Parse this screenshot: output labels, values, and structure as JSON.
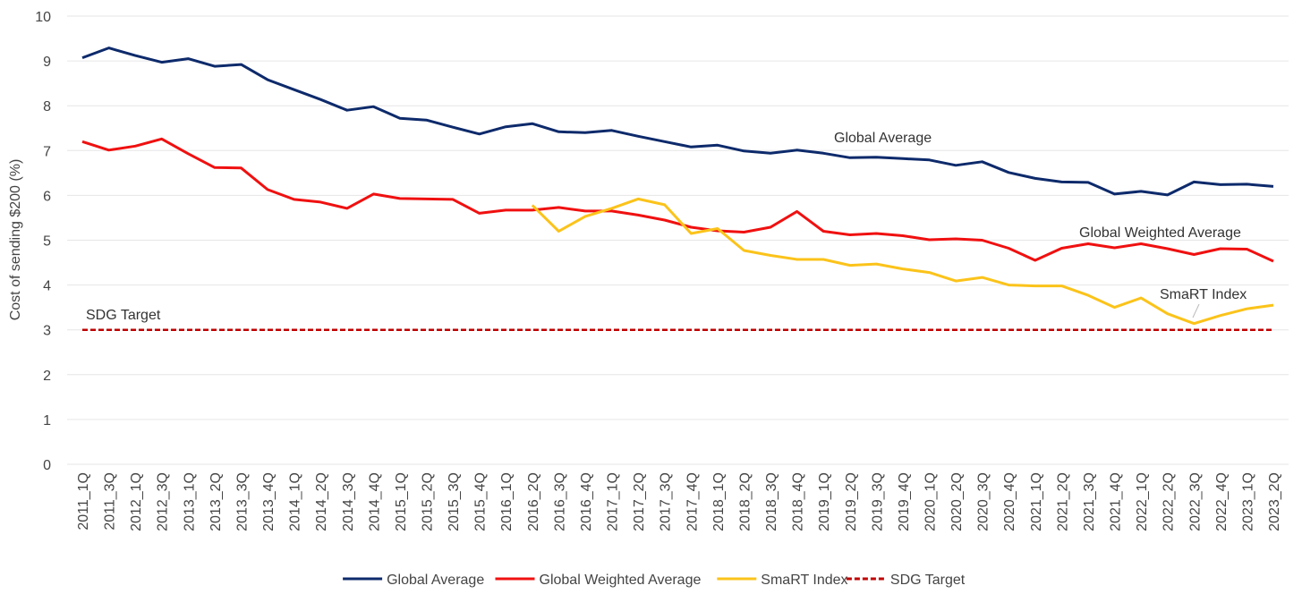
{
  "chart_data": {
    "type": "line",
    "y_label": "Cost of sending $200 (%)",
    "categories": [
      "2011_1Q",
      "2011_3Q",
      "2012_1Q",
      "2012_3Q",
      "2013_1Q",
      "2013_2Q",
      "2013_3Q",
      "2013_4Q",
      "2014_1Q",
      "2014_2Q",
      "2014_3Q",
      "2014_4Q",
      "2015_1Q",
      "2015_2Q",
      "2015_3Q",
      "2015_4Q",
      "2016_1Q",
      "2016_2Q",
      "2016_3Q",
      "2016_4Q",
      "2017_1Q",
      "2017_2Q",
      "2017_3Q",
      "2017_4Q",
      "2018_1Q",
      "2018_2Q",
      "2018_3Q",
      "2018_4Q",
      "2019_1Q",
      "2019_2Q",
      "2019_3Q",
      "2019_4Q",
      "2020_1Q",
      "2020_2Q",
      "2020_3Q",
      "2020_4Q",
      "2021_1Q",
      "2021_2Q",
      "2021_3Q",
      "2021_4Q",
      "2022_1Q",
      "2022_2Q",
      "2022_3Q",
      "2022_4Q",
      "2023_1Q",
      "2023_2Q"
    ],
    "series": [
      {
        "name": "Global Average",
        "color": "#0d2a6b",
        "dash": false,
        "values": [
          9.07,
          9.29,
          9.12,
          8.97,
          9.05,
          8.88,
          8.92,
          8.58,
          8.36,
          8.14,
          7.9,
          7.98,
          7.72,
          7.68,
          7.52,
          7.37,
          7.53,
          7.6,
          7.42,
          7.4,
          7.45,
          7.32,
          7.2,
          7.08,
          7.12,
          6.99,
          6.94,
          7.01,
          6.94,
          6.84,
          6.85,
          6.82,
          6.79,
          6.67,
          6.75,
          6.51,
          6.38,
          6.3,
          6.29,
          6.03,
          6.09,
          6.01,
          6.3,
          6.24,
          6.25,
          6.2
        ]
      },
      {
        "name": "Global Weighted Average",
        "color": "#f01010",
        "dash": false,
        "values": [
          7.2,
          7.01,
          7.1,
          7.26,
          6.93,
          6.62,
          6.61,
          6.13,
          5.91,
          5.85,
          5.71,
          6.03,
          5.93,
          5.92,
          5.91,
          5.6,
          5.67,
          5.67,
          5.73,
          5.65,
          5.65,
          5.56,
          5.45,
          5.29,
          5.21,
          5.18,
          5.29,
          5.64,
          5.2,
          5.12,
          5.15,
          5.1,
          5.01,
          5.03,
          5.0,
          4.82,
          4.55,
          4.82,
          4.92,
          4.83,
          4.92,
          4.81,
          4.68,
          4.81,
          4.8,
          4.53
        ]
      },
      {
        "name": "SmaRT Index",
        "color": "#fbc31a",
        "dash": false,
        "values": [
          null,
          null,
          null,
          null,
          null,
          null,
          null,
          null,
          null,
          null,
          null,
          null,
          null,
          null,
          null,
          null,
          null,
          5.78,
          5.2,
          5.53,
          5.71,
          5.92,
          5.79,
          5.15,
          5.26,
          4.77,
          4.66,
          4.57,
          4.57,
          4.44,
          4.47,
          4.36,
          4.28,
          4.09,
          4.17,
          4.0,
          3.98,
          3.98,
          3.77,
          3.5,
          3.71,
          3.36,
          3.14,
          3.32,
          3.47,
          3.55
        ]
      },
      {
        "name": "SDG Target",
        "color": "#c00000",
        "dash": true,
        "values": [
          3,
          3,
          3,
          3,
          3,
          3,
          3,
          3,
          3,
          3,
          3,
          3,
          3,
          3,
          3,
          3,
          3,
          3,
          3,
          3,
          3,
          3,
          3,
          3,
          3,
          3,
          3,
          3,
          3,
          3,
          3,
          3,
          3,
          3,
          3,
          3,
          3,
          3,
          3,
          3,
          3,
          3,
          3,
          3,
          3,
          3
        ]
      }
    ],
    "annotations": [
      "Global Average",
      "Global Weighted Average",
      "SmaRT Index",
      "SDG Target"
    ],
    "ylim": [
      0,
      10
    ],
    "yticks": [
      0,
      1,
      2,
      3,
      4,
      5,
      6,
      7,
      8,
      9,
      10
    ],
    "grid": true
  }
}
